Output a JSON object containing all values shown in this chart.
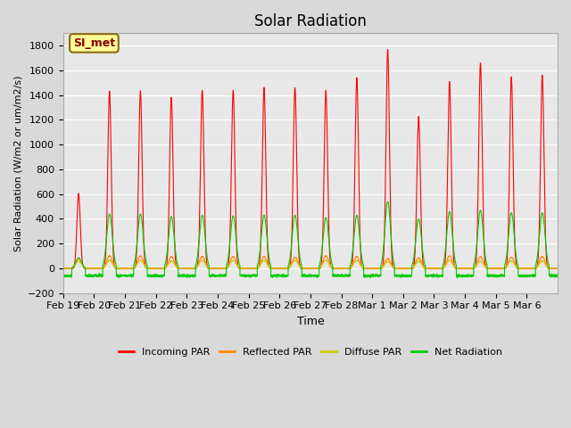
{
  "title": "Solar Radiation",
  "ylabel": "Solar Radiation (W/m2 or um/m2/s)",
  "xlabel": "Time",
  "ylim": [
    -200,
    1900
  ],
  "yticks": [
    -200,
    0,
    200,
    400,
    600,
    800,
    1000,
    1200,
    1400,
    1600,
    1800
  ],
  "background_color": "#d9d9d9",
  "plot_bg_color": "#e8e8e8",
  "grid_color": "#ffffff",
  "annotation_text": "SI_met",
  "annotation_bg": "#ffff99",
  "annotation_border": "#8b6914",
  "series_colors": {
    "incoming": "#ff0000",
    "reflected": "#ff8800",
    "diffuse": "#cccc00",
    "net": "#00cc00"
  },
  "legend_labels": [
    "Incoming PAR",
    "Reflected PAR",
    "Diffuse PAR",
    "Net Radiation"
  ],
  "xtick_labels": [
    "Feb 19",
    "Feb 20",
    "Feb 21",
    "Feb 22",
    "Feb 23",
    "Feb 24",
    "Feb 25",
    "Feb 26",
    "Feb 27",
    "Feb 28",
    "Mar 1",
    "Mar 2",
    "Mar 3",
    "Mar 4",
    "Mar 5",
    "Mar 6"
  ],
  "n_days": 16,
  "incoming_peaks": [
    600,
    1430,
    1430,
    1380,
    1440,
    1440,
    1460,
    1460,
    1430,
    1540,
    1770,
    1230,
    1510,
    1660,
    1550,
    1560
  ],
  "reflected_peaks": [
    80,
    100,
    100,
    95,
    95,
    95,
    95,
    90,
    100,
    95,
    80,
    85,
    100,
    95,
    90,
    95
  ],
  "diffuse_peaks": [
    60,
    65,
    65,
    60,
    65,
    65,
    65,
    65,
    65,
    65,
    55,
    60,
    65,
    60,
    60,
    60
  ],
  "net_peaks": [
    85,
    440,
    440,
    420,
    430,
    425,
    430,
    430,
    410,
    430,
    540,
    400,
    460,
    470,
    450,
    450
  ]
}
